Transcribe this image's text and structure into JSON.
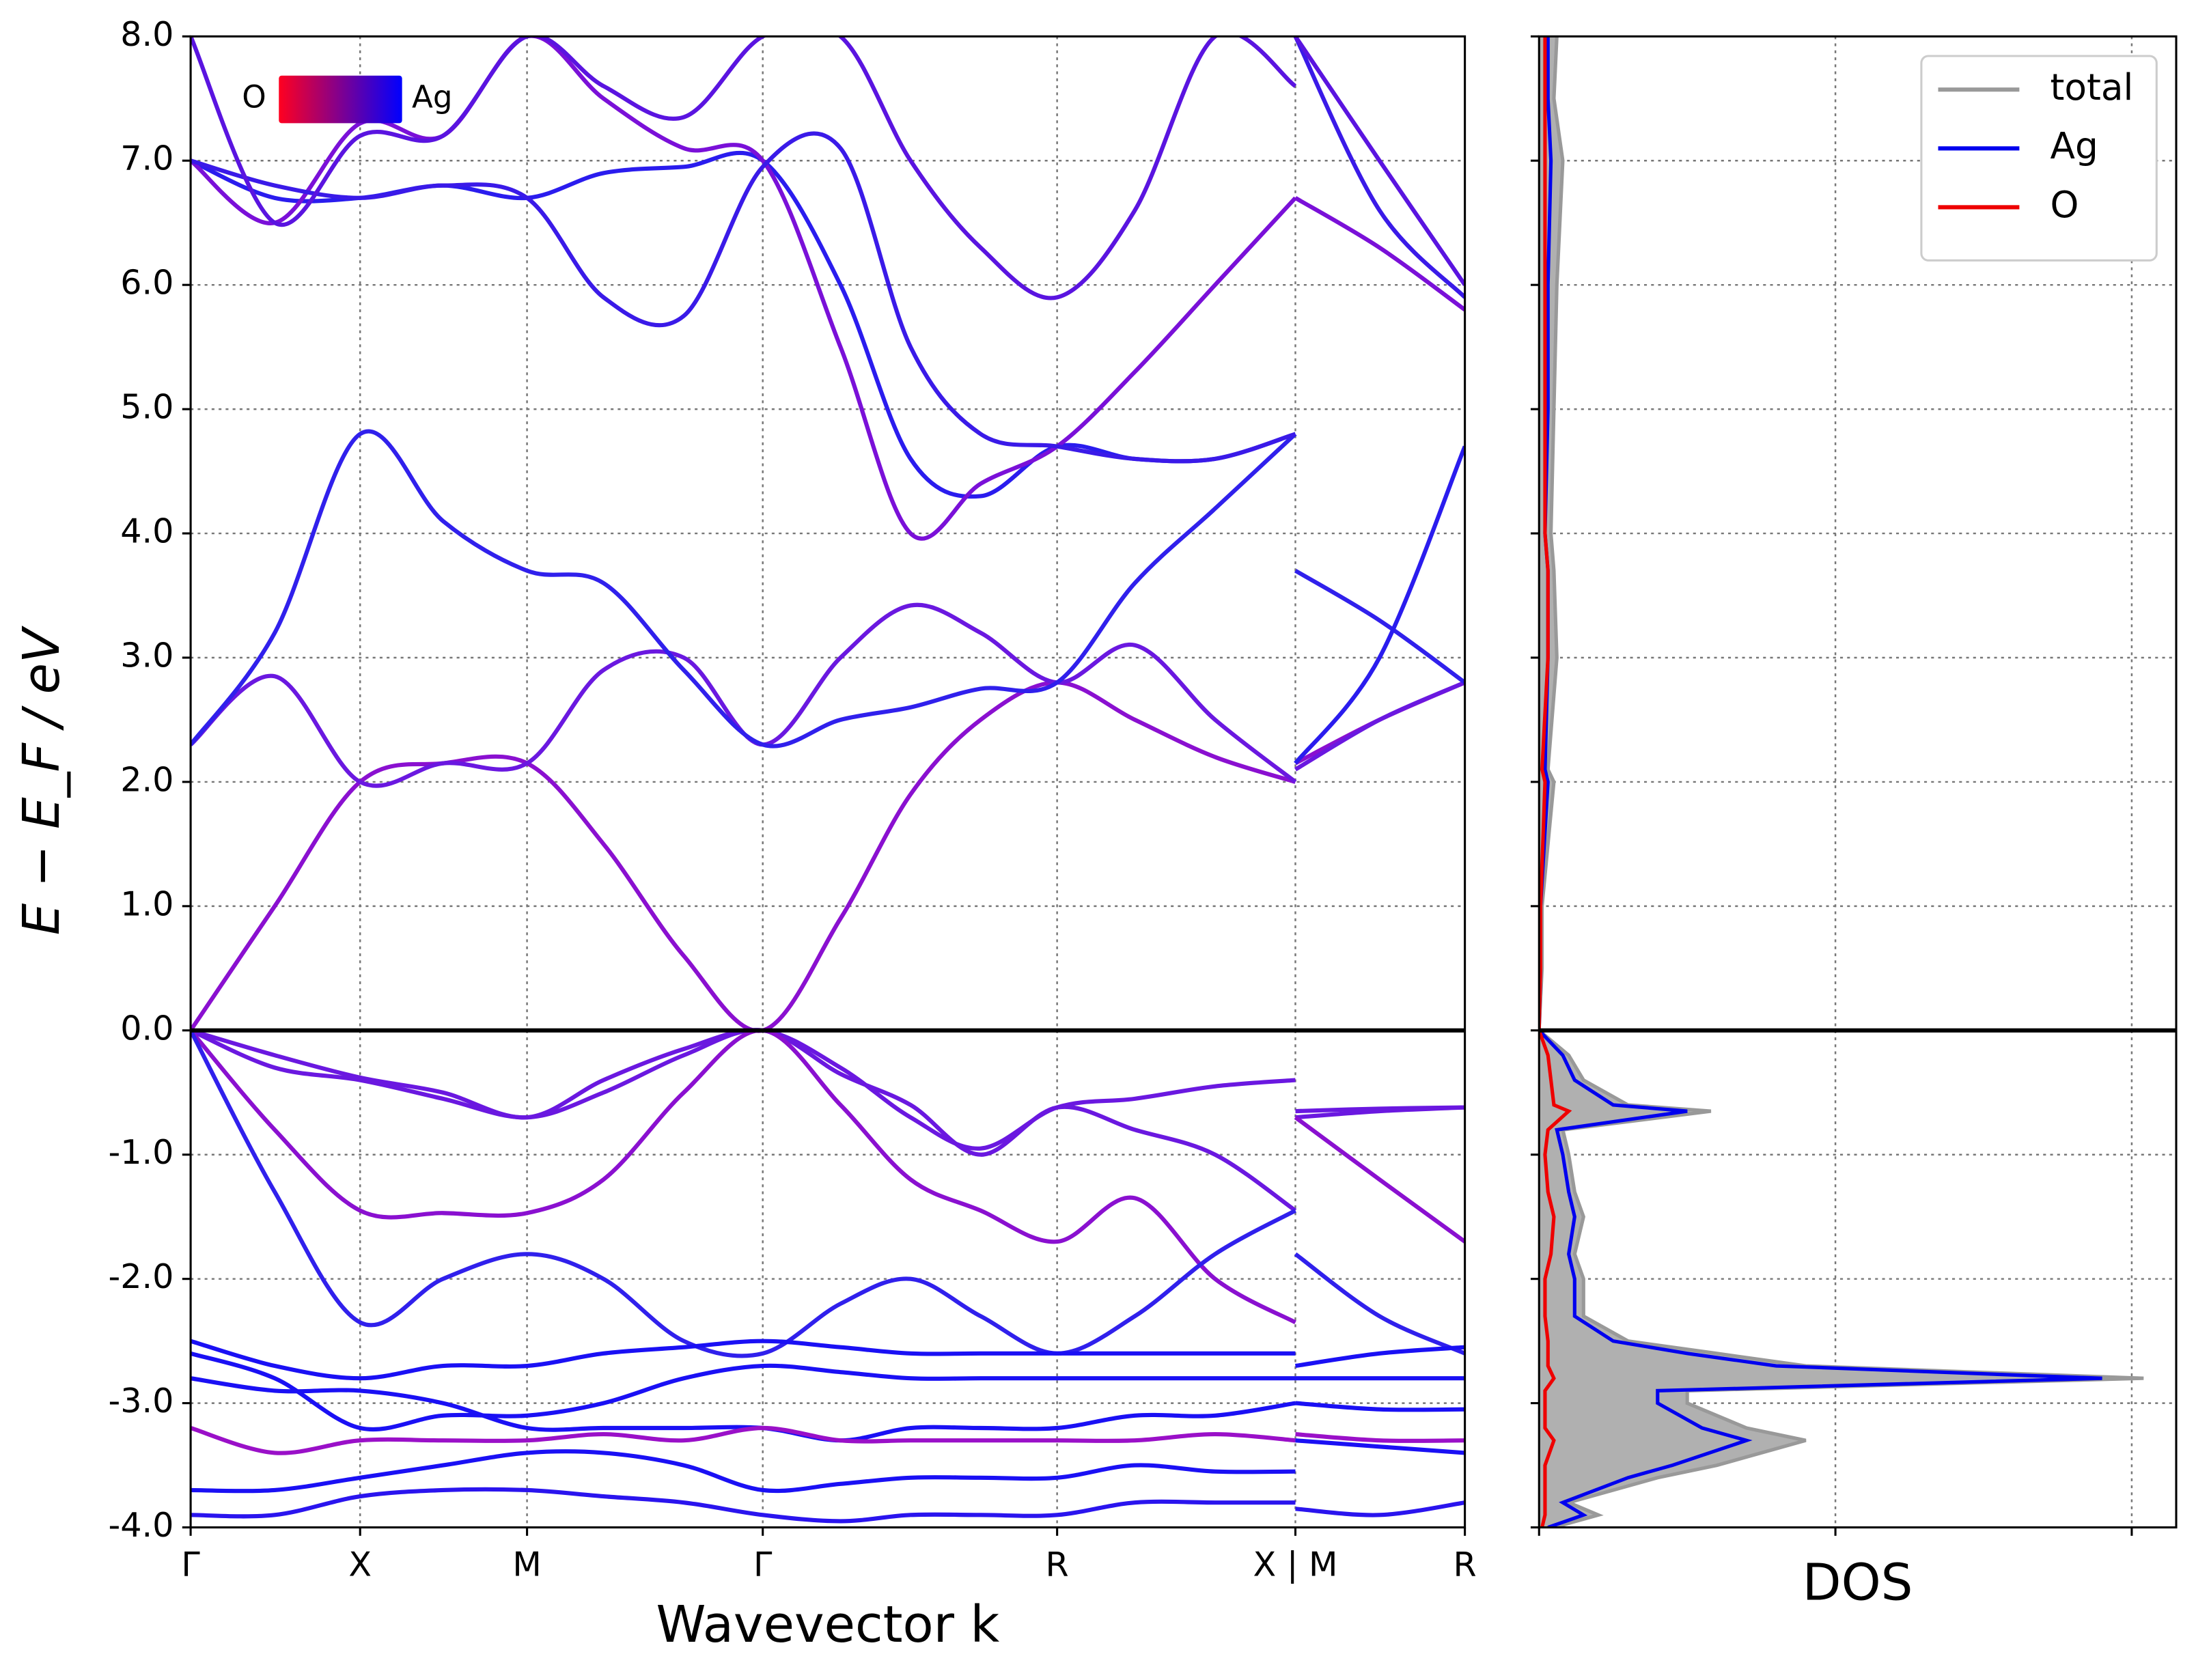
{
  "chart_data": [
    {
      "type": "band",
      "xlabel": "Wavevector k",
      "ylabel": "E − E_F / eV",
      "x": [
        0,
        0.066,
        0.133,
        0.198,
        0.264,
        0.324,
        0.387,
        0.449,
        0.51,
        0.565,
        0.62,
        0.68,
        0.741,
        0.804,
        0.867,
        0.867,
        0.867,
        0.933,
        1.0
      ],
      "xlim": [
        0,
        1
      ],
      "xticks": [
        {
          "value": 0,
          "label": "Γ"
        },
        {
          "value": 0.133,
          "label": "X"
        },
        {
          "value": 0.264,
          "label": "M"
        },
        {
          "value": 0.449,
          "label": "Γ"
        },
        {
          "value": 0.68,
          "label": "R"
        },
        {
          "value": 0.867,
          "label": "X | M"
        },
        {
          "value": 1.0,
          "label": "R"
        }
      ],
      "ylim": [
        -4,
        8
      ],
      "yticks": [
        {
          "value": -4,
          "label": "-4.0"
        },
        {
          "value": -3,
          "label": "-3.0"
        },
        {
          "value": -2,
          "label": "-2.0"
        },
        {
          "value": -1,
          "label": "-1.0"
        },
        {
          "value": 0,
          "label": "0.0"
        },
        {
          "value": 1,
          "label": "1.0"
        },
        {
          "value": 2,
          "label": "2.0"
        },
        {
          "value": 3,
          "label": "3.0"
        },
        {
          "value": 4,
          "label": "4.0"
        },
        {
          "value": 5,
          "label": "5.0"
        },
        {
          "value": 6,
          "label": "6.0"
        },
        {
          "value": 7,
          "label": "7.0"
        },
        {
          "value": 8,
          "label": "8.0"
        }
      ],
      "grid": true,
      "reference_line": 0,
      "colorbar": {
        "low_label": "O",
        "high_label": "Ag",
        "low_color": "#ff0020",
        "high_color": "#0000ff"
      },
      "series": [
        {
          "color": "#8a10d0",
          "values": [
            0,
            1.0,
            2.0,
            2.15,
            2.15,
            1.5,
            0.6,
            0,
            0.9,
            1.9,
            2.5,
            2.8,
            2.5,
            2.2,
            2.0,
            null,
            2.15,
            2.5,
            2.8
          ]
        },
        {
          "color": "#6a18e0",
          "values": [
            2.3,
            2.85,
            2.0,
            2.15,
            2.15,
            2.9,
            3.0,
            2.3,
            3.0,
            3.42,
            3.2,
            2.8,
            3.1,
            2.5,
            2.0,
            null,
            2.1,
            2.5,
            2.8
          ]
        },
        {
          "color": "#3020ec",
          "values": [
            2.3,
            3.2,
            4.8,
            4.1,
            3.7,
            3.6,
            2.9,
            2.3,
            2.5,
            2.6,
            2.75,
            2.8,
            3.6,
            4.2,
            4.8,
            null,
            3.7,
            3.3,
            2.8
          ]
        },
        {
          "color": "#2a1cee",
          "values": [
            7.0,
            6.7,
            6.7,
            6.8,
            6.7,
            6.9,
            6.95,
            7.0,
            6.0,
            4.6,
            4.3,
            4.7,
            4.6,
            4.6,
            4.8,
            null,
            2.15,
            3.0,
            4.7
          ]
        },
        {
          "color": "#7a10d8",
          "values": [
            7.0,
            6.5,
            7.3,
            7.2,
            8.0,
            7.5,
            7.1,
            7.0,
            5.5,
            4.0,
            4.4,
            4.7,
            5.3,
            6.0,
            6.7,
            null,
            6.7,
            6.3,
            5.8
          ]
        },
        {
          "color": "#3a1ae8",
          "values": [
            7.0,
            6.8,
            6.7,
            6.8,
            6.7,
            5.9,
            5.75,
            6.95,
            7.1,
            5.5,
            4.8,
            4.7,
            4.6,
            4.6,
            4.8,
            null,
            8.0,
            6.6,
            5.9
          ]
        },
        {
          "color": "#5a14e0",
          "values": [
            8.0,
            6.5,
            7.2,
            7.2,
            8.0,
            7.6,
            7.35,
            8.0,
            8.0,
            7.0,
            6.3,
            5.9,
            6.6,
            8.0,
            7.6,
            null,
            8.0,
            7.0,
            6.0
          ]
        },
        {
          "color": "#6a18e0",
          "values": [
            0,
            -0.2,
            -0.38,
            -0.5,
            -0.7,
            -0.4,
            -0.15,
            0,
            -0.3,
            -0.7,
            -0.95,
            -0.62,
            -0.55,
            -0.45,
            -0.4,
            null,
            -0.7,
            -0.65,
            -0.62
          ]
        },
        {
          "color": "#6a18e0",
          "values": [
            0,
            -0.3,
            -0.4,
            -0.55,
            -0.7,
            -0.5,
            -0.2,
            0,
            -0.35,
            -0.6,
            -1.0,
            -0.62,
            -0.8,
            -1.0,
            -1.45,
            null,
            -0.65,
            -0.63,
            -0.62
          ]
        },
        {
          "color": "#8a10d0",
          "values": [
            0,
            -0.8,
            -1.45,
            -1.47,
            -1.47,
            -1.2,
            -0.5,
            0,
            -0.6,
            -1.2,
            -1.45,
            -1.7,
            -1.35,
            -2.0,
            -2.35,
            null,
            -0.7,
            -1.2,
            -1.7
          ]
        },
        {
          "color": "#3020ec",
          "values": [
            0,
            -1.3,
            -2.35,
            -2.0,
            -1.8,
            -2.0,
            -2.5,
            -2.6,
            -2.2,
            -2.0,
            -2.3,
            -2.6,
            -2.3,
            -1.8,
            -1.45,
            null,
            -1.8,
            -2.3,
            -2.6
          ]
        },
        {
          "color": "#1a10f4",
          "values": [
            -2.5,
            -2.7,
            -2.8,
            -2.7,
            -2.7,
            -2.6,
            -2.55,
            -2.5,
            -2.55,
            -2.6,
            -2.6,
            -2.6,
            -2.6,
            -2.6,
            -2.6,
            null,
            -2.7,
            -2.6,
            -2.55
          ]
        },
        {
          "color": "#1a10f4",
          "values": [
            -2.6,
            -2.8,
            -3.2,
            -3.1,
            -3.1,
            -3.0,
            -2.8,
            -2.7,
            -2.75,
            -2.8,
            -2.8,
            -2.8,
            -2.8,
            -2.8,
            -2.8,
            null,
            -2.8,
            -2.8,
            -2.8
          ]
        },
        {
          "color": "#1a10f4",
          "values": [
            -2.8,
            -2.9,
            -2.9,
            -3.0,
            -3.2,
            -3.2,
            -3.2,
            -3.2,
            -3.3,
            -3.2,
            -3.2,
            -3.2,
            -3.1,
            -3.1,
            -3.0,
            null,
            -3.0,
            -3.05,
            -3.05
          ]
        },
        {
          "color": "#9a10c8",
          "values": [
            -3.2,
            -3.4,
            -3.3,
            -3.3,
            -3.3,
            -3.25,
            -3.3,
            -3.2,
            -3.3,
            -3.3,
            -3.3,
            -3.3,
            -3.3,
            -3.25,
            -3.3,
            null,
            -3.25,
            -3.3,
            -3.3
          ]
        },
        {
          "color": "#1a10f4",
          "values": [
            -3.7,
            -3.7,
            -3.6,
            -3.5,
            -3.4,
            -3.4,
            -3.5,
            -3.7,
            -3.65,
            -3.6,
            -3.6,
            -3.6,
            -3.5,
            -3.55,
            -3.55,
            null,
            -3.3,
            -3.35,
            -3.4
          ]
        },
        {
          "color": "#2a14ee",
          "values": [
            -3.9,
            -3.9,
            -3.75,
            -3.7,
            -3.7,
            -3.75,
            -3.8,
            -3.9,
            -3.95,
            -3.9,
            -3.9,
            -3.9,
            -3.8,
            -3.8,
            -3.8,
            null,
            -3.85,
            -3.9,
            -3.8
          ]
        }
      ]
    },
    {
      "type": "dos",
      "xlabel": "DOS",
      "legend": "upper right",
      "y": [
        -4.0,
        -3.9,
        -3.8,
        -3.6,
        -3.5,
        -3.3,
        -3.2,
        -3.0,
        -2.9,
        -2.8,
        -2.7,
        -2.6,
        -2.5,
        -2.3,
        -2.0,
        -1.8,
        -1.5,
        -1.3,
        -1.0,
        -0.8,
        -0.65,
        -0.6,
        -0.4,
        -0.2,
        0,
        0.5,
        1,
        2,
        2.1,
        3,
        3.7,
        4,
        5,
        6,
        7,
        7.5,
        8
      ],
      "xlim": [
        0,
        2.15
      ],
      "xticks": [
        0,
        1,
        2
      ],
      "series": [
        {
          "name": "total",
          "color": "#999999",
          "fill": "#b0b0b0",
          "values": [
            0.05,
            0.2,
            0.1,
            0.4,
            0.6,
            0.9,
            0.7,
            0.5,
            0.5,
            2.04,
            0.9,
            0.6,
            0.3,
            0.15,
            0.15,
            0.12,
            0.15,
            0.12,
            0.1,
            0.08,
            0.58,
            0.3,
            0.15,
            0.1,
            0,
            0.01,
            0.01,
            0.05,
            0.03,
            0.06,
            0.05,
            0.04,
            0.05,
            0.06,
            0.08,
            0.05,
            0.06
          ]
        },
        {
          "name": "Ag",
          "color": "#0000ee",
          "values": [
            0.03,
            0.15,
            0.08,
            0.3,
            0.45,
            0.7,
            0.55,
            0.4,
            0.4,
            1.9,
            0.8,
            0.5,
            0.25,
            0.12,
            0.12,
            0.1,
            0.12,
            0.1,
            0.08,
            0.06,
            0.5,
            0.25,
            0.12,
            0.08,
            0,
            0.005,
            0.005,
            0.03,
            0.02,
            0.03,
            0.03,
            0.02,
            0.03,
            0.03,
            0.04,
            0.03,
            0.03
          ]
        },
        {
          "name": "O",
          "color": "#ee0000",
          "values": [
            0.01,
            0.02,
            0.02,
            0.02,
            0.02,
            0.05,
            0.02,
            0.02,
            0.02,
            0.05,
            0.03,
            0.03,
            0.03,
            0.02,
            0.02,
            0.04,
            0.05,
            0.03,
            0.02,
            0.03,
            0.1,
            0.05,
            0.04,
            0.03,
            0,
            0.005,
            0.005,
            0.02,
            0.01,
            0.03,
            0.03,
            0.02,
            0.02,
            0.02,
            0.02,
            0.02,
            0.02
          ]
        }
      ]
    }
  ]
}
